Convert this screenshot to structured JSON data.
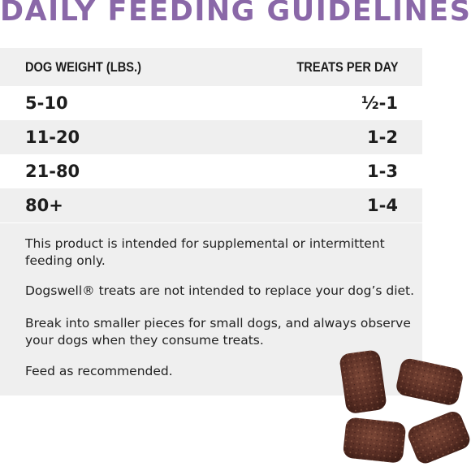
{
  "title": "DAILY FEEDING GUIDELINES",
  "table": {
    "headers": {
      "weight": "DOG WEIGHT (LBS.)",
      "treats": "TREATS PER DAY"
    },
    "rows": [
      {
        "weight": "5-10",
        "treats": "½-1"
      },
      {
        "weight": "11-20",
        "treats": "1-2"
      },
      {
        "weight": "21-80",
        "treats": "1-3"
      },
      {
        "weight": "80+",
        "treats": "1-4"
      }
    ]
  },
  "notes": [
    "This product is intended for supplemental or intermittent feeding only.",
    "Dogswell® treats are not intended to replace your dog’s diet.",
    "Break into smaller pieces for small dogs, and always observe your dogs when they consume treats.",
    "Feed as recommended."
  ],
  "colors": {
    "title": "#8a68a8",
    "row_gray": "#efefef",
    "treat_brown": "#5a2f25"
  },
  "image": {
    "icon": "treat-pieces-image"
  }
}
